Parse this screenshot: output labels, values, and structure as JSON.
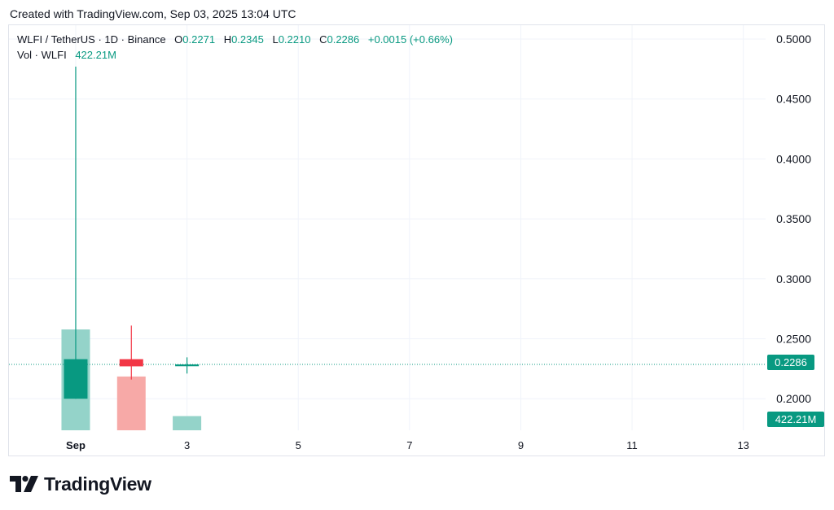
{
  "header": {
    "created_text": "Created with TradingView.com, Sep 03, 2025 13:04 UTC"
  },
  "legend": {
    "symbol": "WLFI / TetherUS · 1D · Binance",
    "open_label": "O",
    "open": "0.2271",
    "high_label": "H",
    "high": "0.2345",
    "low_label": "L",
    "low": "0.2210",
    "close_label": "C",
    "close": "0.2286",
    "change": "+0.0015 (+0.66%)",
    "vol_label": "Vol · WLFI",
    "vol_value": "422.21M"
  },
  "price_tag": "0.2286",
  "volume_tag": "422.21M",
  "brand": {
    "name": "TradingView"
  },
  "colors": {
    "up": "#089981",
    "down": "#f23645",
    "vol_up": "#94d3c9",
    "vol_down": "#f7a9a7",
    "grid": "#f0f3fa",
    "text": "#131722"
  },
  "chart_data": {
    "type": "candlestick",
    "symbol": "WLFI / TetherUS",
    "interval": "1D",
    "exchange": "Binance",
    "y_ticks": [
      "0.5000",
      "0.4500",
      "0.4000",
      "0.3500",
      "0.3000",
      "0.2500",
      "0.2000"
    ],
    "y_tick_values": [
      0.5,
      0.45,
      0.4,
      0.35,
      0.3,
      0.25,
      0.2
    ],
    "ylim": [
      0.173,
      0.5
    ],
    "x_ticks": [
      "Sep",
      "3",
      "5",
      "7",
      "9",
      "11",
      "13"
    ],
    "x_tick_days": [
      1,
      3,
      5,
      7,
      9,
      11,
      13
    ],
    "xlim": [
      -0.2,
      13.4
    ],
    "candles": [
      {
        "day": 1,
        "open": 0.2,
        "high": 0.477,
        "low": 0.2,
        "close": 0.233
      },
      {
        "day": 2,
        "open": 0.233,
        "high": 0.261,
        "low": 0.216,
        "close": 0.227
      },
      {
        "day": 3,
        "open": 0.2271,
        "high": 0.2345,
        "low": 0.221,
        "close": 0.2286
      }
    ],
    "volumes": [
      {
        "day": 1,
        "value": 3000,
        "up": true
      },
      {
        "day": 2,
        "value": 1600,
        "up": false
      },
      {
        "day": 3,
        "value": 422.21,
        "up": true
      }
    ],
    "volume_unit": "M",
    "last_price": 0.2286,
    "grid": true
  }
}
